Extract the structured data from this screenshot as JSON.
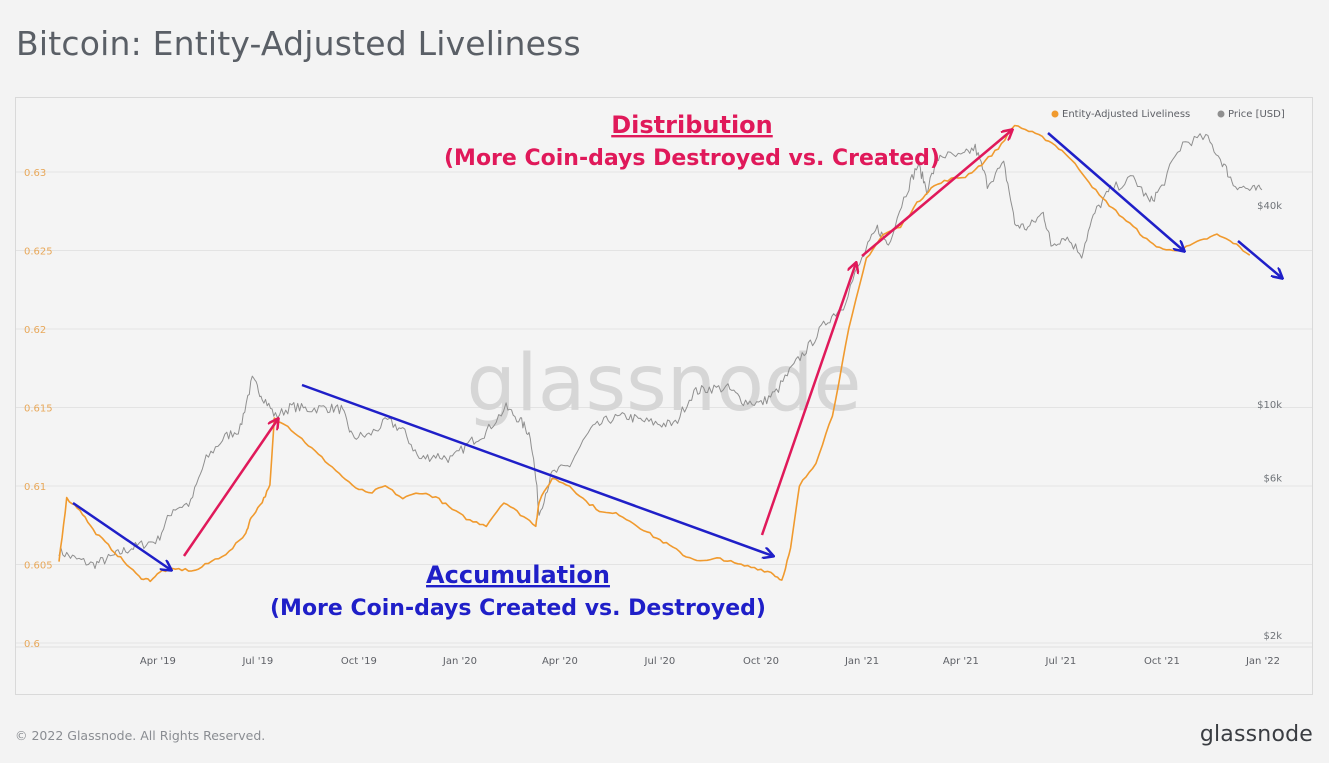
{
  "title": "Bitcoin: Entity-Adjusted Liveliness",
  "footer": {
    "copyright": "© 2022 Glassnode. All Rights Reserved.",
    "brand": "glassnode"
  },
  "watermark": "glassnode",
  "colors": {
    "liveliness": "#f09a2e",
    "price": "#8f8f8f",
    "distribution": "#e0195a",
    "accumulation": "#1f1fc8",
    "left_axis_text": "#e8a85a",
    "right_axis_text": "#6f7378",
    "grid": "#e3e3e3"
  },
  "annotations": {
    "distribution_title": "Distribution",
    "distribution_sub": "(More Coin-days Destroyed vs. Created)",
    "accumulation_title": "Accumulation",
    "accumulation_sub": "(More Coin-days Created vs. Destroyed)"
  },
  "chart_data": {
    "type": "line",
    "legend": [
      "Entity-Adjusted Liveliness",
      "Price [USD]"
    ],
    "legend_position": "top-right",
    "grid": true,
    "x_ticks": [
      "Apr '19",
      "Jul '19",
      "Oct '19",
      "Jan '20",
      "Apr '20",
      "Jul '20",
      "Oct '20",
      "Jan '21",
      "Apr '21",
      "Jul '21",
      "Oct '21",
      "Jan '22"
    ],
    "x_tick_dates": [
      "2019-04-01",
      "2019-07-01",
      "2019-10-01",
      "2020-01-01",
      "2020-04-01",
      "2020-07-01",
      "2020-10-01",
      "2021-01-01",
      "2021-04-01",
      "2021-07-01",
      "2021-10-01",
      "2022-01-01"
    ],
    "xlim": [
      "2019-01-01",
      "2022-01-01"
    ],
    "y_left": {
      "ticks": [
        "0.6",
        "0.605",
        "0.61",
        "0.615",
        "0.62",
        "0.625",
        "0.63"
      ],
      "ylim": [
        0.6,
        0.6335
      ]
    },
    "y_right": {
      "scale": "log",
      "ticks": [
        "$2k",
        "$6k",
        "$10k",
        "$40k"
      ],
      "tick_values": [
        2000,
        6000,
        10000,
        40000
      ]
    },
    "series": [
      {
        "name": "Entity-Adjusted Liveliness",
        "axis": "left",
        "points": [
          [
            "2019-01-01",
            0.6052
          ],
          [
            "2019-01-08",
            0.6092
          ],
          [
            "2019-01-20",
            0.6085
          ],
          [
            "2019-02-01",
            0.6072
          ],
          [
            "2019-02-15",
            0.6062
          ],
          [
            "2019-03-01",
            0.6052
          ],
          [
            "2019-03-15",
            0.6042
          ],
          [
            "2019-03-25",
            0.604
          ],
          [
            "2019-04-05",
            0.6046
          ],
          [
            "2019-04-20",
            0.6047
          ],
          [
            "2019-05-05",
            0.6046
          ],
          [
            "2019-05-20",
            0.6052
          ],
          [
            "2019-06-05",
            0.6058
          ],
          [
            "2019-06-20",
            0.607
          ],
          [
            "2019-06-25",
            0.608
          ],
          [
            "2019-07-05",
            0.609
          ],
          [
            "2019-07-12",
            0.61
          ],
          [
            "2019-07-16",
            0.6143
          ],
          [
            "2019-07-25",
            0.614
          ],
          [
            "2019-08-10",
            0.613
          ],
          [
            "2019-08-25",
            0.612
          ],
          [
            "2019-09-10",
            0.611
          ],
          [
            "2019-09-25",
            0.61
          ],
          [
            "2019-10-10",
            0.6095
          ],
          [
            "2019-10-25",
            0.61
          ],
          [
            "2019-11-10",
            0.6092
          ],
          [
            "2019-11-25",
            0.6096
          ],
          [
            "2019-12-10",
            0.6093
          ],
          [
            "2019-12-25",
            0.6085
          ],
          [
            "2020-01-10",
            0.6078
          ],
          [
            "2020-01-25",
            0.6075
          ],
          [
            "2020-02-10",
            0.609
          ],
          [
            "2020-02-25",
            0.6082
          ],
          [
            "2020-03-10",
            0.6075
          ],
          [
            "2020-03-13",
            0.609
          ],
          [
            "2020-03-25",
            0.6105
          ],
          [
            "2020-04-10",
            0.61
          ],
          [
            "2020-04-25",
            0.609
          ],
          [
            "2020-05-10",
            0.6083
          ],
          [
            "2020-05-25",
            0.6082
          ],
          [
            "2020-06-10",
            0.6075
          ],
          [
            "2020-06-25",
            0.6068
          ],
          [
            "2020-07-10",
            0.6062
          ],
          [
            "2020-07-25",
            0.6055
          ],
          [
            "2020-08-10",
            0.6052
          ],
          [
            "2020-08-25",
            0.6054
          ],
          [
            "2020-09-10",
            0.605
          ],
          [
            "2020-09-25",
            0.6048
          ],
          [
            "2020-10-10",
            0.6045
          ],
          [
            "2020-10-20",
            0.604
          ],
          [
            "2020-10-28",
            0.606
          ],
          [
            "2020-11-05",
            0.61
          ],
          [
            "2020-11-20",
            0.6115
          ],
          [
            "2020-12-05",
            0.6145
          ],
          [
            "2020-12-20",
            0.62
          ],
          [
            "2021-01-05",
            0.6245
          ],
          [
            "2021-01-20",
            0.626
          ],
          [
            "2021-02-05",
            0.6265
          ],
          [
            "2021-02-20",
            0.628
          ],
          [
            "2021-03-05",
            0.629
          ],
          [
            "2021-03-20",
            0.6295
          ],
          [
            "2021-04-05",
            0.6297
          ],
          [
            "2021-04-20",
            0.6305
          ],
          [
            "2021-05-05",
            0.6315
          ],
          [
            "2021-05-20",
            0.633
          ],
          [
            "2021-06-05",
            0.6325
          ],
          [
            "2021-06-20",
            0.632
          ],
          [
            "2021-07-05",
            0.6312
          ],
          [
            "2021-07-20",
            0.63
          ],
          [
            "2021-08-05",
            0.6285
          ],
          [
            "2021-08-20",
            0.6275
          ],
          [
            "2021-09-05",
            0.6265
          ],
          [
            "2021-09-20",
            0.6255
          ],
          [
            "2021-10-05",
            0.625
          ],
          [
            "2021-10-20",
            0.6251
          ],
          [
            "2021-11-05",
            0.6256
          ],
          [
            "2021-11-20",
            0.626
          ],
          [
            "2021-12-05",
            0.6255
          ],
          [
            "2021-12-20",
            0.6247
          ]
        ]
      },
      {
        "name": "Price [USD]",
        "axis": "right",
        "points": [
          [
            "2019-01-01",
            3800
          ],
          [
            "2019-01-15",
            3600
          ],
          [
            "2019-02-01",
            3450
          ],
          [
            "2019-02-15",
            3600
          ],
          [
            "2019-03-01",
            3800
          ],
          [
            "2019-03-15",
            3950
          ],
          [
            "2019-04-01",
            4100
          ],
          [
            "2019-04-15",
            5100
          ],
          [
            "2019-05-01",
            5300
          ],
          [
            "2019-05-15",
            7200
          ],
          [
            "2019-06-01",
            8400
          ],
          [
            "2019-06-15",
            8900
          ],
          [
            "2019-06-26",
            12500
          ],
          [
            "2019-07-05",
            11200
          ],
          [
            "2019-07-17",
            9700
          ],
          [
            "2019-08-01",
            10400
          ],
          [
            "2019-08-15",
            10200
          ],
          [
            "2019-09-01",
            10300
          ],
          [
            "2019-09-15",
            10200
          ],
          [
            "2019-09-25",
            8400
          ],
          [
            "2019-10-10",
            8500
          ],
          [
            "2019-10-27",
            9400
          ],
          [
            "2019-11-10",
            8800
          ],
          [
            "2019-11-25",
            7200
          ],
          [
            "2019-12-10",
            7400
          ],
          [
            "2019-12-25",
            7200
          ],
          [
            "2020-01-10",
            8100
          ],
          [
            "2020-01-25",
            8700
          ],
          [
            "2020-02-12",
            10300
          ],
          [
            "2020-02-25",
            9400
          ],
          [
            "2020-03-05",
            8500
          ],
          [
            "2020-03-13",
            4900
          ],
          [
            "2020-03-25",
            6500
          ],
          [
            "2020-04-10",
            6900
          ],
          [
            "2020-04-29",
            8800
          ],
          [
            "2020-05-15",
            9500
          ],
          [
            "2020-06-01",
            9700
          ],
          [
            "2020-06-15",
            9400
          ],
          [
            "2020-07-01",
            9200
          ],
          [
            "2020-07-15",
            9200
          ],
          [
            "2020-08-01",
            11500
          ],
          [
            "2020-08-15",
            11800
          ],
          [
            "2020-09-01",
            11800
          ],
          [
            "2020-09-15",
            10800
          ],
          [
            "2020-10-01",
            10600
          ],
          [
            "2020-10-15",
            11500
          ],
          [
            "2020-10-31",
            13800
          ],
          [
            "2020-11-15",
            16000
          ],
          [
            "2020-12-01",
            19000
          ],
          [
            "2020-12-15",
            21000
          ],
          [
            "2021-01-01",
            29000
          ],
          [
            "2021-01-15",
            36000
          ],
          [
            "2021-01-25",
            32000
          ],
          [
            "2021-02-10",
            46000
          ],
          [
            "2021-02-21",
            56000
          ],
          [
            "2021-03-01",
            47000
          ],
          [
            "2021-03-13",
            60000
          ],
          [
            "2021-04-01",
            59000
          ],
          [
            "2021-04-14",
            63000
          ],
          [
            "2021-04-25",
            49000
          ],
          [
            "2021-05-10",
            56000
          ],
          [
            "2021-05-20",
            37000
          ],
          [
            "2021-06-01",
            36000
          ],
          [
            "2021-06-15",
            40000
          ],
          [
            "2021-06-22",
            32000
          ],
          [
            "2021-07-05",
            34000
          ],
          [
            "2021-07-20",
            30000
          ],
          [
            "2021-08-01",
            40000
          ],
          [
            "2021-08-15",
            47000
          ],
          [
            "2021-09-05",
            51000
          ],
          [
            "2021-09-20",
            43000
          ],
          [
            "2021-10-01",
            48000
          ],
          [
            "2021-10-20",
            65000
          ],
          [
            "2021-11-10",
            68000
          ],
          [
            "2021-11-25",
            57000
          ],
          [
            "2021-12-05",
            49000
          ],
          [
            "2021-12-20",
            47000
          ],
          [
            "2021-12-31",
            47000
          ]
        ]
      }
    ]
  }
}
